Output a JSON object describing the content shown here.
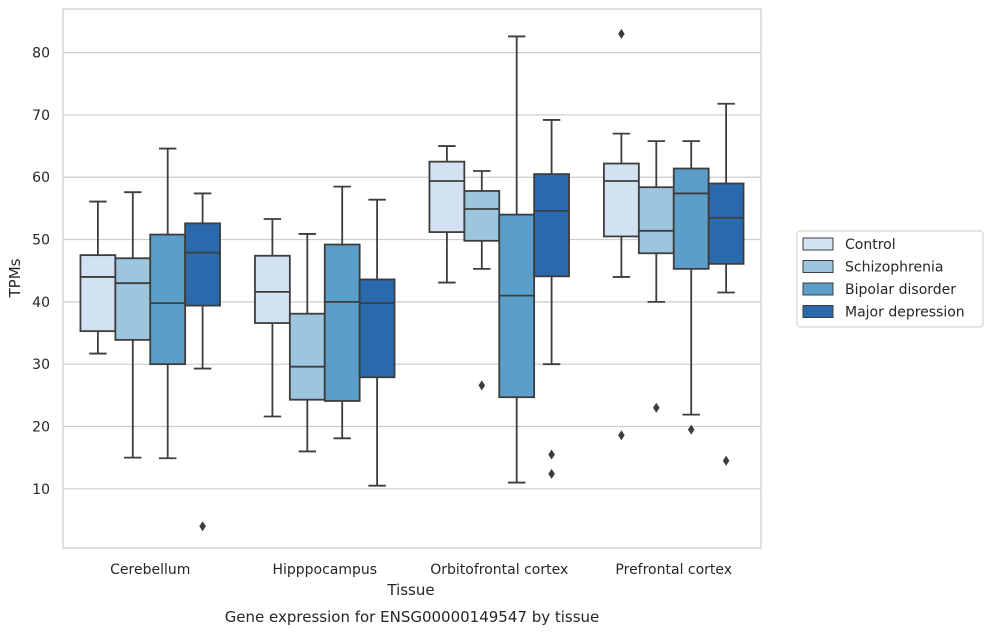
{
  "caption": "Gene expression for ENSG00000149547 by tissue",
  "chart_data": {
    "type": "box",
    "xlabel": "Tissue",
    "ylabel": "TPMs",
    "ylim": [
      0.5,
      87
    ],
    "yticks": [
      10,
      20,
      30,
      40,
      50,
      60,
      70,
      80
    ],
    "categories": [
      "Cerebellum",
      "Hipppocampus",
      "Orbitofrontal cortex",
      "Prefrontal cortex"
    ],
    "grid": "horizontal",
    "legend_position": "right",
    "series": [
      {
        "name": "Control",
        "color": "#d2e2f2",
        "boxes": [
          {
            "whislo": 31.7,
            "q1": 35.3,
            "med": 44.0,
            "q3": 47.5,
            "whishi": 56.1,
            "fliers": []
          },
          {
            "whislo": 21.6,
            "q1": 36.6,
            "med": 41.6,
            "q3": 47.4,
            "whishi": 53.3,
            "fliers": []
          },
          {
            "whislo": 43.1,
            "q1": 51.2,
            "med": 59.4,
            "q3": 62.5,
            "whishi": 65.0,
            "fliers": []
          },
          {
            "whislo": 44.0,
            "q1": 50.5,
            "med": 59.4,
            "q3": 62.2,
            "whishi": 67.0,
            "fliers": [
              18.6,
              83.0
            ]
          }
        ]
      },
      {
        "name": "Schizophrenia",
        "color": "#9cc5de",
        "boxes": [
          {
            "whislo": 15.0,
            "q1": 33.9,
            "med": 43.0,
            "q3": 47.0,
            "whishi": 57.6,
            "fliers": []
          },
          {
            "whislo": 16.0,
            "q1": 24.3,
            "med": 29.6,
            "q3": 38.1,
            "whishi": 50.9,
            "fliers": []
          },
          {
            "whislo": 45.3,
            "q1": 49.8,
            "med": 54.9,
            "q3": 57.8,
            "whishi": 61.0,
            "fliers": [
              26.6
            ]
          },
          {
            "whislo": 40.0,
            "q1": 47.8,
            "med": 51.4,
            "q3": 58.4,
            "whishi": 65.8,
            "fliers": [
              23.0
            ]
          }
        ]
      },
      {
        "name": "Bipolar disorder",
        "color": "#5b9ec9",
        "boxes": [
          {
            "whislo": 14.9,
            "q1": 30.0,
            "med": 39.8,
            "q3": 50.8,
            "whishi": 64.6,
            "fliers": []
          },
          {
            "whislo": 18.1,
            "q1": 24.1,
            "med": 40.0,
            "q3": 49.2,
            "whishi": 58.5,
            "fliers": []
          },
          {
            "whislo": 11.0,
            "q1": 24.7,
            "med": 41.0,
            "q3": 54.0,
            "whishi": 82.6,
            "fliers": []
          },
          {
            "whislo": 21.9,
            "q1": 45.3,
            "med": 57.4,
            "q3": 61.4,
            "whishi": 65.8,
            "fliers": [
              19.5
            ]
          }
        ]
      },
      {
        "name": "Major depression",
        "color": "#2a6aac",
        "boxes": [
          {
            "whislo": 29.3,
            "q1": 39.4,
            "med": 47.9,
            "q3": 52.6,
            "whishi": 57.4,
            "fliers": [
              4.0
            ]
          },
          {
            "whislo": 10.5,
            "q1": 27.9,
            "med": 39.8,
            "q3": 43.6,
            "whishi": 56.4,
            "fliers": []
          },
          {
            "whislo": 30.0,
            "q1": 44.1,
            "med": 54.6,
            "q3": 60.5,
            "whishi": 69.2,
            "fliers": [
              12.4,
              15.5
            ]
          },
          {
            "whislo": 41.5,
            "q1": 46.1,
            "med": 53.5,
            "q3": 59.0,
            "whishi": 71.8,
            "fliers": [
              14.5
            ]
          }
        ]
      }
    ]
  }
}
